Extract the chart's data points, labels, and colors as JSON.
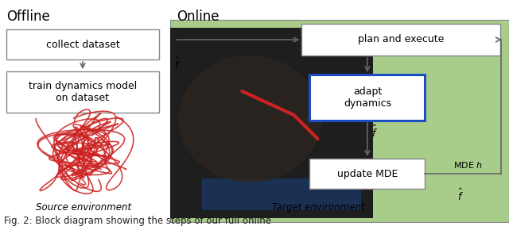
{
  "fig_width": 6.4,
  "fig_height": 2.9,
  "dpi": 100,
  "bg_color": "#ffffff",
  "online_bg_color": "#a8cc8a",
  "offline_label": "Offline",
  "online_label": "Online",
  "box1_text": "collect dataset",
  "box2_text": "train dynamics model\non dataset",
  "box3_text": "plan and execute",
  "box4_text": "adapt\ndynamics",
  "box4_border_color": "#1a4ec2",
  "box5_text": "update MDE",
  "source_env_text": "Source environment",
  "target_env_text": "Target environment",
  "caption": "Fig. 2: Block diagram showing the steps of our full online",
  "arrow_color": "#666666",
  "box_border_color": "#888888",
  "mde_label": "MDE ",
  "online_split": 0.335
}
